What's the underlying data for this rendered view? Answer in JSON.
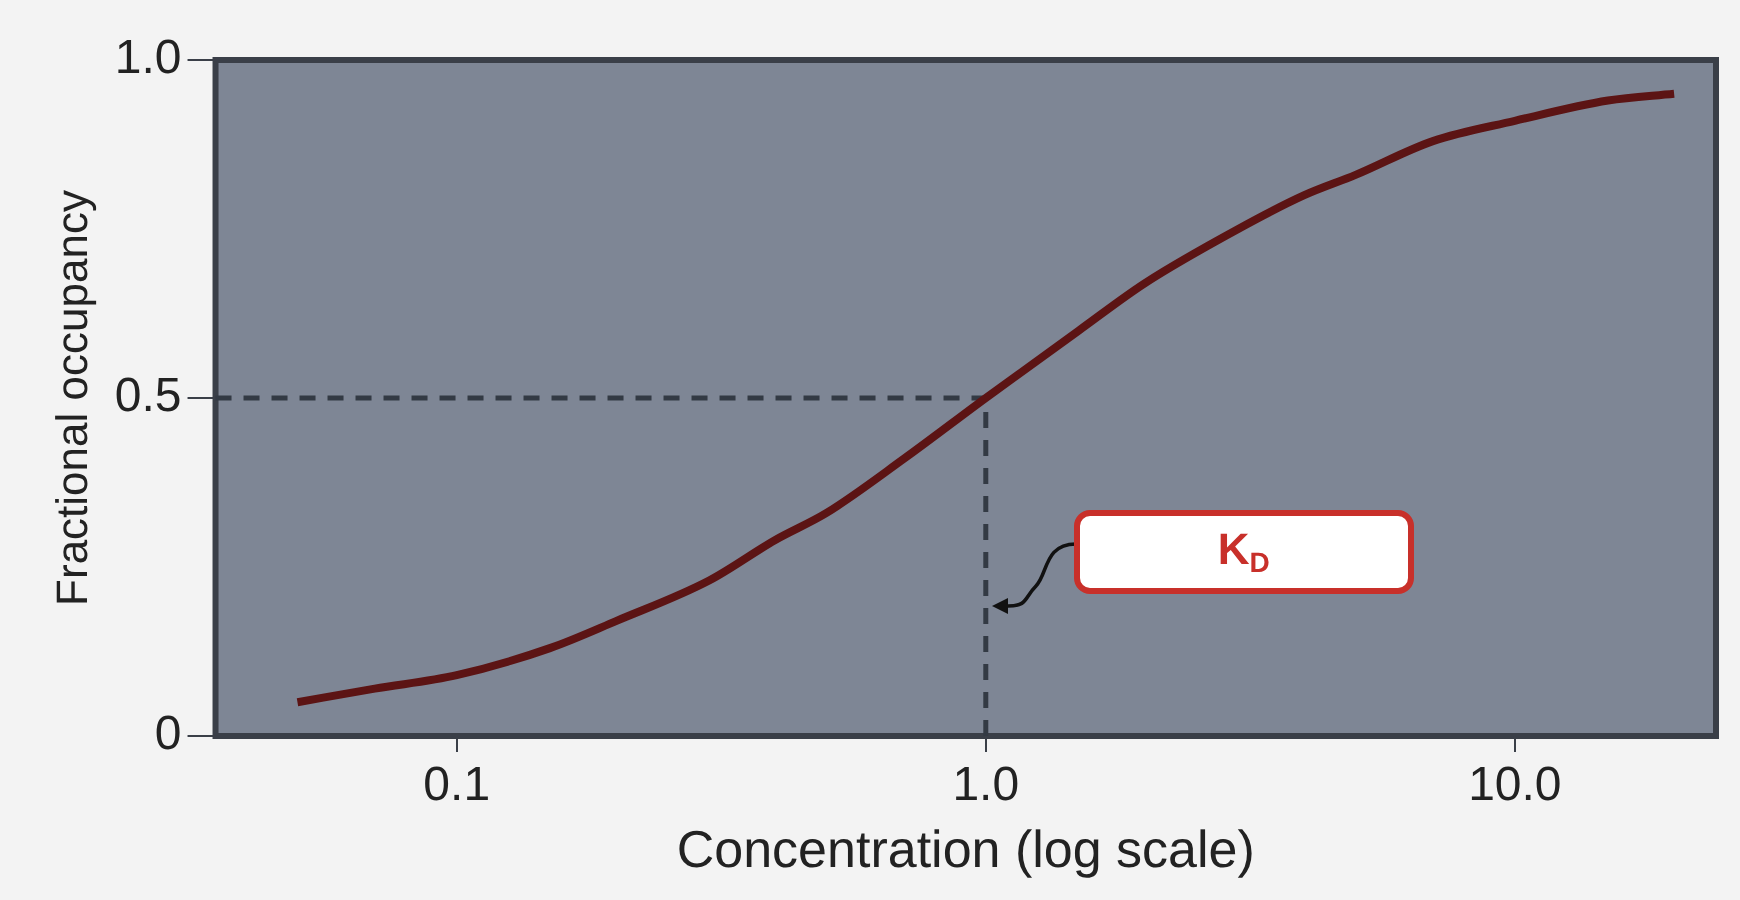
{
  "chart_data": {
    "type": "line",
    "xlabel": "Concentration (log scale)",
    "ylabel": "Fractional occupancy",
    "x": [
      0.05,
      0.07,
      0.1,
      0.15,
      0.2,
      0.3,
      0.4,
      0.5,
      0.7,
      1,
      1.5,
      2,
      3,
      4,
      5,
      7,
      10,
      15,
      20
    ],
    "series": [
      {
        "color": "#5c1414",
        "values": [
          0.05,
          0.07,
          0.09,
          0.13,
          0.17,
          0.23,
          0.29,
          0.33,
          0.41,
          0.5,
          0.6,
          0.67,
          0.75,
          0.8,
          0.83,
          0.88,
          0.91,
          0.94,
          0.95
        ]
      }
    ],
    "log": "x",
    "xlim": [
      0.035,
      24
    ],
    "xticks": [
      0.1,
      {
        "value": 1,
        "label": "1.0"
      },
      {
        "value": 10,
        "label": "10.0"
      }
    ],
    "ylim": [
      0,
      1
    ],
    "yticks": [
      0,
      0.5,
      {
        "value": 1,
        "label": "1.0"
      }
    ],
    "ref_lines": [
      {
        "axis": "y",
        "value": 0.5,
        "line_style": "dashed",
        "color": "#333a44"
      },
      {
        "axis": "x",
        "value": 1,
        "line_style": "dashed",
        "color": "#333a44"
      }
    ],
    "annotations": [
      "K$_{D}$"
    ],
    "grid": false,
    "legend": false,
    "marker": "none",
    "line_style": "solid"
  }
}
